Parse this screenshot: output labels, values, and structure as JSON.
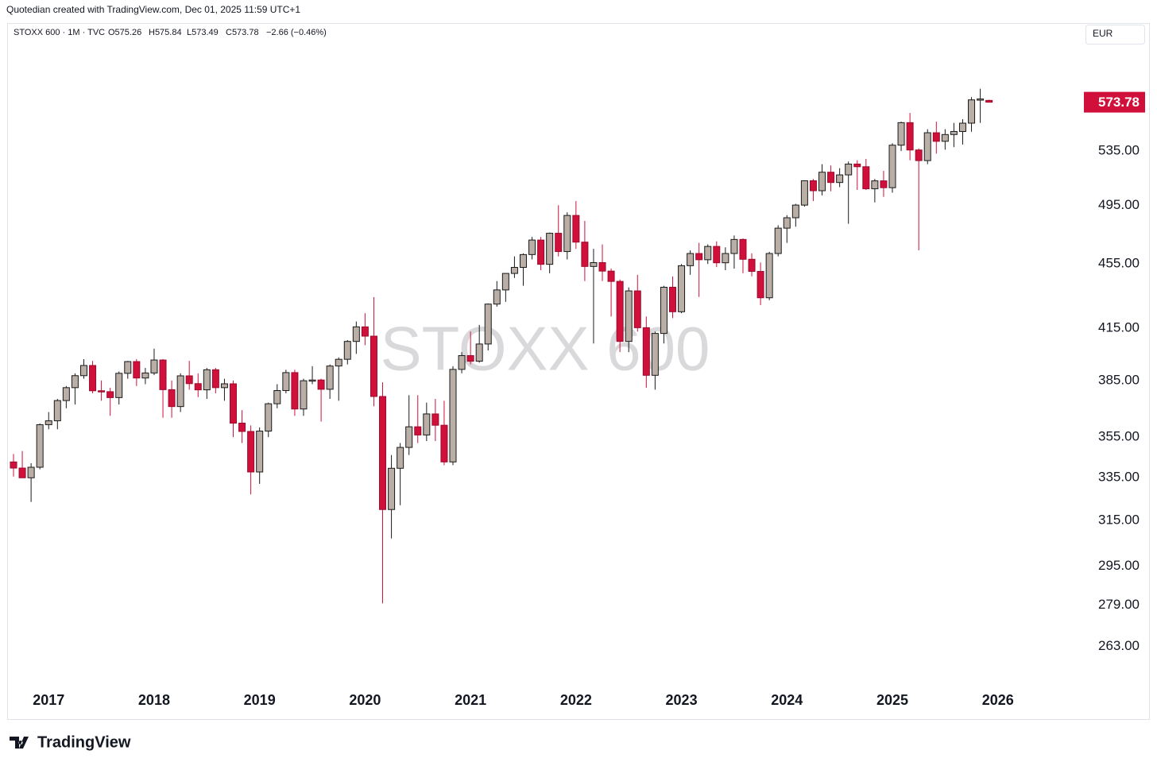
{
  "header": {
    "attribution": "Quotedian created with TradingView.com, Dec 01, 2025 11:59 UTC+1",
    "legend": {
      "symbol": "STOXX 600 · 1M · TVC",
      "open": "O575.26",
      "high": "H575.84",
      "low": "L573.49",
      "close": "C573.78",
      "change": "−2.66 (−0.46%)"
    },
    "currency": "EUR"
  },
  "footer": {
    "brand": "TradingView"
  },
  "chart_data": {
    "type": "candlestick",
    "watermark": "STOXX 600",
    "categories": [
      null,
      null,
      null,
      null,
      "2017",
      null,
      null,
      null,
      null,
      null,
      null,
      null,
      null,
      null,
      null,
      null,
      "2018",
      null,
      null,
      null,
      null,
      null,
      null,
      null,
      null,
      null,
      null,
      null,
      "2019",
      null,
      null,
      null,
      null,
      null,
      null,
      null,
      null,
      null,
      null,
      null,
      "2020",
      null,
      null,
      null,
      null,
      null,
      null,
      null,
      null,
      null,
      null,
      null,
      "2021",
      null,
      null,
      null,
      null,
      null,
      null,
      null,
      null,
      null,
      null,
      null,
      "2022",
      null,
      null,
      null,
      null,
      null,
      null,
      null,
      null,
      null,
      null,
      null,
      "2023",
      null,
      null,
      null,
      null,
      null,
      null,
      null,
      null,
      null,
      null,
      null,
      "2024",
      null,
      null,
      null,
      null,
      null,
      null,
      null,
      null,
      null,
      null,
      null,
      "2025",
      null,
      null,
      null,
      null,
      null,
      null,
      null,
      null,
      null,
      null,
      null,
      "2026"
    ],
    "open": [
      342.6,
      339.6,
      334.9,
      340.0,
      361.4,
      363.4,
      374.1,
      381.1,
      387.7,
      393.4,
      379.4,
      378.9,
      375.7,
      389.0,
      395.6,
      386.4,
      389.2,
      396.5,
      380.0,
      370.9,
      387.6,
      383.3,
      379.9,
      391.0,
      381.1,
      383.2,
      362.2,
      357.9,
      337.7,
      358.1,
      372.4,
      379.5,
      389.4,
      369.6,
      384.9,
      385.3,
      380.2,
      393.1,
      396.9,
      407.2,
      415.8,
      410.3,
      376.3,
      320.0,
      339.5,
      349.8,
      360.3,
      356.1,
      367.0,
      361.1,
      342.6,
      391.2,
      399.0,
      395.8,
      405.7,
      429.6,
      438.4,
      448.9,
      452.8,
      461.2,
      470.9,
      454.8,
      475.5,
      463.2,
      487.8,
      469.5,
      453.4,
      455.9,
      450.4,
      443.8,
      407.2,
      437.8,
      415.3,
      387.9,
      411.9,
      440.1,
      424.9,
      453.9,
      461.9,
      457.8,
      466.6,
      455.8,
      461.9,
      471.3,
      458.1,
      450.2,
      433.5,
      461.9,
      479.0,
      486.2,
      495.1,
      512.7,
      505.4,
      519.0,
      511.4,
      517.0,
      525.1,
      523.1,
      506.8,
      512.6,
      507.6,
      539.5,
      557.2,
      535.8,
      527.7,
      549.2,
      542.5,
      547.8,
      550.2,
      556.8,
      575.7,
      575.26,
      null
    ],
    "high": [
      346.5,
      348,
      342,
      362,
      368,
      375,
      382,
      389,
      397,
      396,
      385,
      381,
      390,
      396,
      397,
      392,
      403,
      397,
      385,
      389,
      396,
      389,
      392,
      392,
      386,
      385,
      369,
      361,
      360,
      373,
      383,
      391,
      391,
      386,
      393,
      386,
      394,
      398,
      408,
      419,
      424,
      433.9,
      384,
      346,
      352,
      377,
      377,
      373,
      375,
      374,
      393,
      401,
      413,
      417,
      430,
      444,
      449,
      460,
      462,
      473,
      473,
      476,
      495,
      490,
      498,
      484,
      465,
      468,
      452,
      445,
      440,
      448,
      422,
      413,
      441,
      447,
      455,
      464,
      469,
      468,
      470,
      466,
      474,
      472,
      462,
      456,
      463,
      481,
      488,
      496,
      513,
      514,
      525,
      524,
      522,
      527,
      528,
      529,
      514,
      520,
      541,
      558,
      565,
      537,
      552,
      558,
      552,
      557,
      560,
      578,
      585,
      575.84,
      null
    ],
    "low": [
      335.5,
      335,
      323.5,
      339,
      359,
      359,
      370,
      372,
      386,
      378,
      374,
      366,
      372,
      386,
      382,
      383,
      388,
      365,
      365,
      368,
      380,
      376,
      375,
      378,
      374,
      355,
      352,
      327,
      332,
      355,
      370,
      378,
      366,
      366,
      383,
      363,
      375,
      374,
      394,
      400,
      405,
      371,
      279.7,
      307,
      322,
      346,
      352,
      353,
      353,
      341,
      341,
      389,
      394,
      395,
      402,
      428,
      431,
      446,
      441,
      458,
      451,
      449,
      460,
      458,
      465,
      444,
      406,
      444,
      422,
      401,
      401,
      413,
      381,
      380,
      406,
      421,
      424,
      448,
      434,
      455,
      453,
      451,
      452,
      449,
      447,
      429,
      432,
      460,
      469,
      480,
      494,
      498,
      502,
      505,
      508,
      482,
      506,
      506,
      497,
      501,
      504,
      535,
      528,
      464,
      525,
      533,
      536,
      538,
      540,
      550,
      557,
      573.49,
      null
    ],
    "close": [
      339.6,
      334.9,
      340.0,
      361.4,
      363.4,
      374.1,
      381.1,
      387.7,
      393.4,
      379.4,
      378.9,
      375.7,
      389.0,
      395.6,
      386.4,
      389.2,
      396.5,
      380.0,
      370.9,
      387.6,
      383.3,
      379.9,
      391.0,
      381.1,
      383.2,
      362.2,
      357.9,
      337.7,
      358.1,
      372.4,
      379.5,
      389.4,
      369.6,
      384.9,
      385.3,
      380.2,
      393.1,
      396.9,
      407.2,
      415.8,
      410.3,
      376.3,
      320.0,
      339.5,
      349.8,
      360.3,
      356.1,
      367.0,
      361.1,
      342.6,
      391.2,
      399.0,
      395.8,
      405.7,
      429.6,
      438.4,
      448.9,
      452.8,
      461.2,
      470.9,
      454.8,
      475.5,
      463.2,
      487.8,
      469.5,
      453.4,
      455.9,
      450.4,
      443.8,
      407.2,
      437.8,
      415.3,
      387.9,
      411.9,
      440.1,
      424.9,
      453.9,
      461.9,
      457.8,
      466.6,
      455.8,
      461.9,
      471.3,
      458.1,
      450.2,
      433.5,
      461.9,
      479.0,
      486.2,
      495.1,
      512.7,
      505.4,
      519.0,
      511.4,
      517.0,
      525.1,
      523.1,
      506.8,
      512.6,
      507.6,
      539.5,
      557.2,
      535.8,
      527.7,
      549.2,
      542.5,
      547.8,
      550.2,
      556.8,
      575.7,
      576.44,
      573.78,
      null
    ],
    "up_color": "#b9afa6",
    "up_border": "#1a1a1a",
    "down_color": "#d0103a",
    "down_border": "#9c0a2c",
    "log_scale": true,
    "grid": false,
    "ylim": [
      248,
      642
    ],
    "yticks": [
      {
        "value": 263,
        "label": "263.00"
      },
      {
        "value": 279,
        "label": "279.00"
      },
      {
        "value": 295,
        "label": "295.00"
      },
      {
        "value": 315,
        "label": "315.00"
      },
      {
        "value": 335,
        "label": "335.00"
      },
      {
        "value": 355,
        "label": "355.00"
      },
      {
        "value": 385,
        "label": "385.00"
      },
      {
        "value": 415,
        "label": "415.00"
      },
      {
        "value": 455,
        "label": "455.00"
      },
      {
        "value": 495,
        "label": "495.00"
      },
      {
        "value": 535,
        "label": "535.00"
      }
    ]
  }
}
